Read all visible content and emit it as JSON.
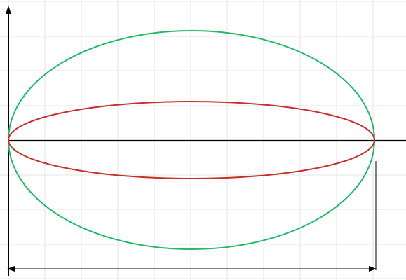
{
  "diagram": {
    "description": "",
    "colors": {
      "background": "#ffffff",
      "grid": "#e6e6e6",
      "axis": "#000000",
      "outer_ellipse": "#21b86a",
      "inner_ellipse": "#c4312b",
      "dimension_line": "#000000"
    },
    "labels": []
  }
}
